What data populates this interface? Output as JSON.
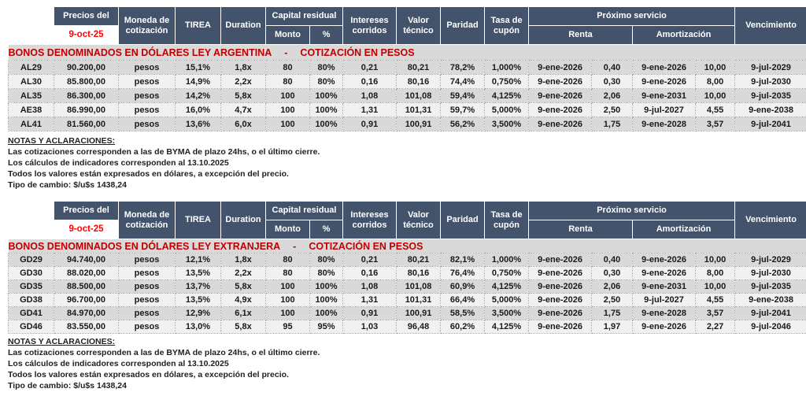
{
  "table_header": {
    "precios_label": "Precios del",
    "precios_date": "9-oct-25",
    "moneda": "Moneda de cotización",
    "tirea": "TIREA",
    "duration": "Duration",
    "capital_residual": "Capital residual",
    "monto": "Monto",
    "porcentaje": "%",
    "intereses": "Intereses corridos",
    "valor_tecnico": "Valor técnico",
    "paridad": "Paridad",
    "tasa_cupon": "Tasa de cupón",
    "proximo_servicio": "Próximo servicio",
    "renta": "Renta",
    "amortizacion": "Amortización",
    "vencimiento": "Vencimiento"
  },
  "sections": [
    {
      "title": "BONOS DENOMINADOS EN DÓLARES LEY ARGENTINA",
      "separator": "-",
      "subtitle": "COTIZACIÓN EN PESOS",
      "rows": [
        [
          "AL29",
          "90.200,00",
          "pesos",
          "15,1%",
          "1,8x",
          "80",
          "80%",
          "0,21",
          "80,21",
          "78,2%",
          "1,000%",
          "9-ene-2026",
          "0,40",
          "9-ene-2026",
          "10,00",
          "9-jul-2029"
        ],
        [
          "AL30",
          "85.800,00",
          "pesos",
          "14,9%",
          "2,2x",
          "80",
          "80%",
          "0,16",
          "80,16",
          "74,4%",
          "0,750%",
          "9-ene-2026",
          "0,30",
          "9-ene-2026",
          "8,00",
          "9-jul-2030"
        ],
        [
          "AL35",
          "86.300,00",
          "pesos",
          "14,2%",
          "5,8x",
          "100",
          "100%",
          "1,08",
          "101,08",
          "59,4%",
          "4,125%",
          "9-ene-2026",
          "2,06",
          "9-ene-2031",
          "10,00",
          "9-jul-2035"
        ],
        [
          "AE38",
          "86.990,00",
          "pesos",
          "16,0%",
          "4,7x",
          "100",
          "100%",
          "1,31",
          "101,31",
          "59,7%",
          "5,000%",
          "9-ene-2026",
          "2,50",
          "9-jul-2027",
          "4,55",
          "9-ene-2038"
        ],
        [
          "AL41",
          "81.560,00",
          "pesos",
          "13,6%",
          "6,0x",
          "100",
          "100%",
          "0,91",
          "100,91",
          "56,2%",
          "3,500%",
          "9-ene-2026",
          "1,75",
          "9-ene-2028",
          "3,57",
          "9-jul-2041"
        ]
      ]
    },
    {
      "title": "BONOS DENOMINADOS EN DÓLARES LEY EXTRANJERA",
      "separator": "-",
      "subtitle": "COTIZACIÓN EN PESOS",
      "rows": [
        [
          "GD29",
          "94.740,00",
          "pesos",
          "12,1%",
          "1,8x",
          "80",
          "80%",
          "0,21",
          "80,21",
          "82,1%",
          "1,000%",
          "9-ene-2026",
          "0,40",
          "9-ene-2026",
          "10,00",
          "9-jul-2029"
        ],
        [
          "GD30",
          "88.020,00",
          "pesos",
          "13,5%",
          "2,2x",
          "80",
          "80%",
          "0,16",
          "80,16",
          "76,4%",
          "0,750%",
          "9-ene-2026",
          "0,30",
          "9-ene-2026",
          "8,00",
          "9-jul-2030"
        ],
        [
          "GD35",
          "88.500,00",
          "pesos",
          "13,7%",
          "5,8x",
          "100",
          "100%",
          "1,08",
          "101,08",
          "60,9%",
          "4,125%",
          "9-ene-2026",
          "2,06",
          "9-ene-2031",
          "10,00",
          "9-jul-2035"
        ],
        [
          "GD38",
          "96.700,00",
          "pesos",
          "13,5%",
          "4,9x",
          "100",
          "100%",
          "1,31",
          "101,31",
          "66,4%",
          "5,000%",
          "9-ene-2026",
          "2,50",
          "9-jul-2027",
          "4,55",
          "9-ene-2038"
        ],
        [
          "GD41",
          "84.970,00",
          "pesos",
          "12,9%",
          "6,1x",
          "100",
          "100%",
          "0,91",
          "100,91",
          "58,5%",
          "3,500%",
          "9-ene-2026",
          "1,75",
          "9-ene-2028",
          "3,57",
          "9-jul-2041"
        ],
        [
          "GD46",
          "83.550,00",
          "pesos",
          "13,0%",
          "5,8x",
          "95",
          "95%",
          "1,03",
          "96,48",
          "60,2%",
          "4,125%",
          "9-ene-2026",
          "1,97",
          "9-ene-2026",
          "2,27",
          "9-jul-2046"
        ]
      ]
    }
  ],
  "notes": {
    "title": "NOTAS Y ACLARACIONES:",
    "lines": [
      "Las cotizaciones corresponden a las de BYMA de plazo 24hs, o el último cierre.",
      "Los cálculos de indicadores corresponden al 13.10.2025",
      "Todos los valores están expresados en dólares, a excepción del precio.",
      "Tipo de cambio: $/u$s 1438,24"
    ]
  },
  "colors": {
    "header_bg": "#42536B",
    "date_red": "#FF0000",
    "title_red": "#C00000",
    "stripe_dark": "#D9D9D9",
    "stripe_light": "#F1F1F1"
  }
}
